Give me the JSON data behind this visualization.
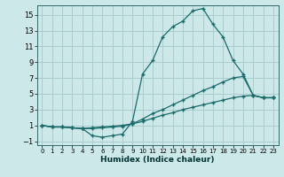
{
  "xlabel": "Humidex (Indice chaleur)",
  "background_color": "#cce8e8",
  "grid_color": "#aacccc",
  "line_color": "#1a6b6b",
  "xlim": [
    -0.5,
    23.5
  ],
  "ylim": [
    -1.5,
    16.2
  ],
  "xticks": [
    0,
    1,
    2,
    3,
    4,
    5,
    6,
    7,
    8,
    9,
    10,
    11,
    12,
    13,
    14,
    15,
    16,
    17,
    18,
    19,
    20,
    21,
    22,
    23
  ],
  "yticks": [
    -1,
    1,
    3,
    5,
    7,
    9,
    11,
    13,
    15
  ],
  "line1_x": [
    0,
    1,
    2,
    3,
    4,
    5,
    6,
    7,
    8,
    9,
    10,
    11,
    12,
    13,
    14,
    15,
    16,
    17,
    18,
    19,
    20,
    21,
    22,
    23
  ],
  "line1_y": [
    1.0,
    0.8,
    0.8,
    0.7,
    0.6,
    -0.3,
    -0.5,
    -0.3,
    -0.1,
    1.5,
    7.5,
    9.2,
    12.2,
    13.5,
    14.2,
    15.5,
    15.8,
    13.8,
    12.2,
    9.2,
    7.5,
    4.8,
    4.5,
    4.5
  ],
  "line2_x": [
    0,
    1,
    2,
    3,
    4,
    5,
    6,
    7,
    8,
    9,
    10,
    11,
    12,
    13,
    14,
    15,
    16,
    17,
    18,
    19,
    20,
    21,
    22,
    23
  ],
  "line2_y": [
    1.0,
    0.8,
    0.8,
    0.7,
    0.6,
    0.6,
    0.7,
    0.8,
    0.9,
    1.2,
    1.8,
    2.5,
    3.0,
    3.6,
    4.2,
    4.8,
    5.4,
    5.9,
    6.5,
    7.0,
    7.2,
    4.8,
    4.5,
    4.5
  ],
  "line3_x": [
    0,
    1,
    2,
    3,
    4,
    5,
    6,
    7,
    8,
    9,
    10,
    11,
    12,
    13,
    14,
    15,
    16,
    17,
    18,
    19,
    20,
    21,
    22,
    23
  ],
  "line3_y": [
    1.0,
    0.8,
    0.8,
    0.7,
    0.6,
    0.7,
    0.8,
    0.9,
    1.0,
    1.2,
    1.5,
    1.9,
    2.3,
    2.6,
    3.0,
    3.3,
    3.6,
    3.9,
    4.2,
    4.5,
    4.7,
    4.8,
    4.5,
    4.5
  ]
}
